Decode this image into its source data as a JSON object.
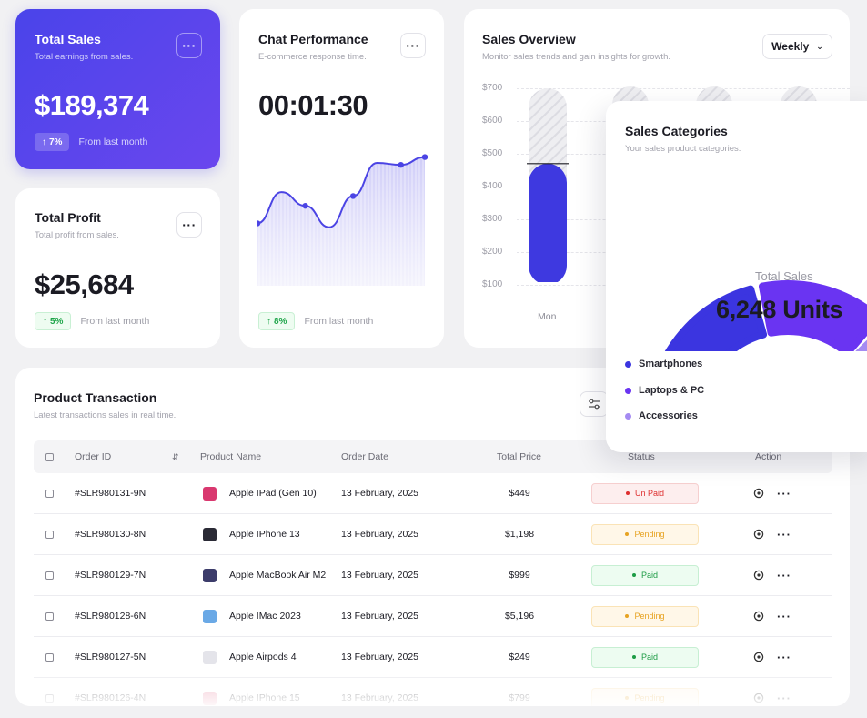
{
  "total_sales": {
    "title": "Total Sales",
    "subtitle": "Total earnings from sales.",
    "value": "$189,374",
    "change": "7%",
    "change_arrow": "↑",
    "compare_text": "From last month",
    "more_icon": "more-horizontal-icon"
  },
  "total_profit": {
    "title": "Total Profit",
    "subtitle": "Total profit from sales.",
    "value": "$25,684",
    "change": "5%",
    "change_arrow": "↑",
    "compare_text": "From last month",
    "more_icon": "more-horizontal-icon"
  },
  "chat_performance": {
    "title": "Chat Performance",
    "subtitle": "E-commerce response time.",
    "value": "00:01:30",
    "change": "8%",
    "change_arrow": "↑",
    "compare_text": "From last month",
    "more_icon": "more-horizontal-icon"
  },
  "sales_overview": {
    "title": "Sales Overview",
    "subtitle": "Monitor sales trends and gain insights for growth.",
    "period_select": "Weekly",
    "y_ticks": [
      "$700",
      "$600",
      "$500",
      "$400",
      "$300",
      "$200",
      "$100"
    ],
    "visible_day": "Mon"
  },
  "sales_categories": {
    "title": "Sales Categories",
    "subtitle": "Your sales product categories.",
    "center_label": "Total Sales",
    "center_value": "6,248 Units",
    "legend": [
      {
        "label": "Smartphones",
        "color": "#3b35e0"
      },
      {
        "label": "Laptops & PC",
        "color": "#6a34f2"
      },
      {
        "label": "Accessories",
        "color": "#a58bf2"
      }
    ]
  },
  "transactions": {
    "title": "Product Transaction",
    "subtitle": "Latest transactions sales in real time.",
    "columns": [
      "Order ID",
      "Product Name",
      "Order Date",
      "Total Price",
      "Status",
      "Action"
    ],
    "rows": [
      {
        "id": "#SLR980131-9N",
        "product": "Apple IPad (Gen 10)",
        "date": "13 February, 2025",
        "price": "$449",
        "status": "Un Paid",
        "status_kind": "unpaid",
        "thumb_color": "#d9386f"
      },
      {
        "id": "#SLR980130-8N",
        "product": "Apple IPhone 13",
        "date": "13 February, 2025",
        "price": "$1,198",
        "status": "Pending",
        "status_kind": "pending",
        "thumb_color": "#2a2a35"
      },
      {
        "id": "#SLR980129-7N",
        "product": "Apple MacBook Air M2",
        "date": "13 February, 2025",
        "price": "$999",
        "status": "Paid",
        "status_kind": "paid",
        "thumb_color": "#3c3c6a"
      },
      {
        "id": "#SLR980128-6N",
        "product": "Apple IMac 2023",
        "date": "13 February, 2025",
        "price": "$5,196",
        "status": "Pending",
        "status_kind": "pending",
        "thumb_color": "#6aa9e6"
      },
      {
        "id": "#SLR980127-5N",
        "product": "Apple Airpods 4",
        "date": "13 February, 2025",
        "price": "$249",
        "status": "Paid",
        "status_kind": "paid",
        "thumb_color": "#e4e4ea"
      },
      {
        "id": "#SLR980126-4N",
        "product": "Apple IPhone 15",
        "date": "13 February, 2025",
        "price": "$799",
        "status": "Pending",
        "status_kind": "pending",
        "thumb_color": "#e88aa3"
      }
    ]
  },
  "chart_data": [
    {
      "type": "area",
      "x": [
        1,
        2,
        3,
        4,
        5,
        6,
        7,
        8
      ],
      "values": [
        3.2,
        4.8,
        4.1,
        3.0,
        4.6,
        6.3,
        6.2,
        6.6
      ],
      "grid": false,
      "legend": "none"
    },
    {
      "type": "bar",
      "categories": [
        "Mon"
      ],
      "values": [
        470
      ],
      "target_values": [
        700
      ],
      "ylim": [
        100,
        700
      ],
      "ylabel": "",
      "grid": true
    },
    {
      "type": "pie",
      "categories": [
        "Smartphones",
        "Laptops & PC",
        "Accessories"
      ],
      "values": [
        38,
        32,
        30
      ]
    }
  ]
}
